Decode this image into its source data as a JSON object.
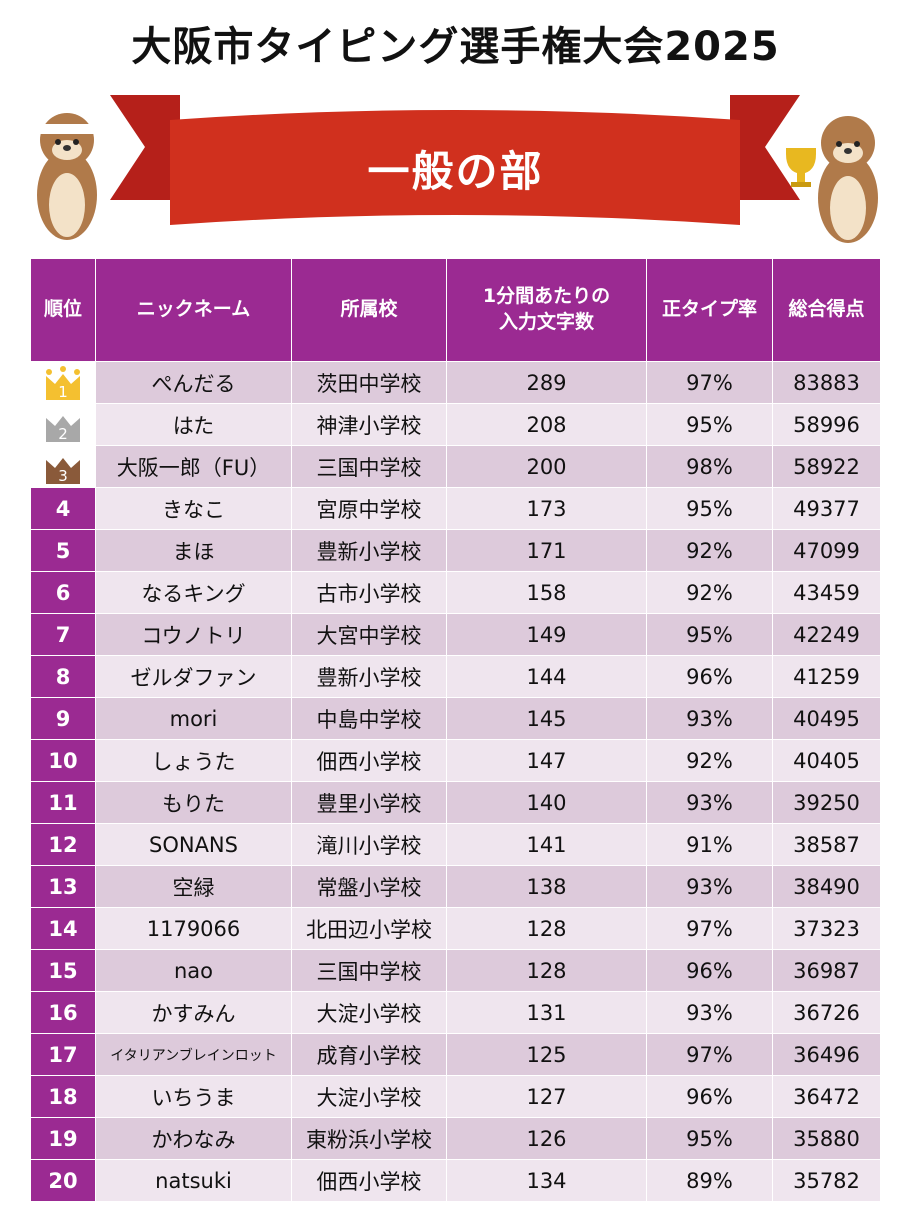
{
  "title": "大阪市タイピング選手権大会2025",
  "banner": "一般の部",
  "colors": {
    "header": "#9b2a92",
    "banner": "#d0301e",
    "gold": "#f4c030",
    "silver": "#a8a8a8",
    "bronze": "#8a5a3a"
  },
  "headers": [
    "順位",
    "ニックネーム",
    "所属校",
    "1分間あたりの\n入力文字数",
    "正タイプ率",
    "総合得点"
  ],
  "rows": [
    {
      "rank": "1",
      "nick": "ぺんだる",
      "school": "茨田中学校",
      "cpm": "289",
      "acc": "97%",
      "score": "83883",
      "medal": "gold"
    },
    {
      "rank": "2",
      "nick": "はた",
      "school": "神津小学校",
      "cpm": "208",
      "acc": "95%",
      "score": "58996",
      "medal": "silver"
    },
    {
      "rank": "3",
      "nick": "大阪一郎（FU）",
      "school": "三国中学校",
      "cpm": "200",
      "acc": "98%",
      "score": "58922",
      "medal": "bronze"
    },
    {
      "rank": "4",
      "nick": "きなこ",
      "school": "宮原中学校",
      "cpm": "173",
      "acc": "95%",
      "score": "49377"
    },
    {
      "rank": "5",
      "nick": "まほ",
      "school": "豊新小学校",
      "cpm": "171",
      "acc": "92%",
      "score": "47099"
    },
    {
      "rank": "6",
      "nick": "なるキング",
      "school": "古市小学校",
      "cpm": "158",
      "acc": "92%",
      "score": "43459"
    },
    {
      "rank": "7",
      "nick": "コウノトリ",
      "school": "大宮中学校",
      "cpm": "149",
      "acc": "95%",
      "score": "42249"
    },
    {
      "rank": "8",
      "nick": "ゼルダファン",
      "school": "豊新小学校",
      "cpm": "144",
      "acc": "96%",
      "score": "41259"
    },
    {
      "rank": "9",
      "nick": "mori",
      "school": "中島中学校",
      "cpm": "145",
      "acc": "93%",
      "score": "40495"
    },
    {
      "rank": "10",
      "nick": "しょうた",
      "school": "佃西小学校",
      "cpm": "147",
      "acc": "92%",
      "score": "40405"
    },
    {
      "rank": "11",
      "nick": "もりた",
      "school": "豊里小学校",
      "cpm": "140",
      "acc": "93%",
      "score": "39250"
    },
    {
      "rank": "12",
      "nick": "SONANS",
      "school": "滝川小学校",
      "cpm": "141",
      "acc": "91%",
      "score": "38587"
    },
    {
      "rank": "13",
      "nick": "空緑",
      "school": "常盤小学校",
      "cpm": "138",
      "acc": "93%",
      "score": "38490"
    },
    {
      "rank": "14",
      "nick": "1179066",
      "school": "北田辺小学校",
      "cpm": "128",
      "acc": "97%",
      "score": "37323"
    },
    {
      "rank": "15",
      "nick": "nao",
      "school": "三国中学校",
      "cpm": "128",
      "acc": "96%",
      "score": "36987"
    },
    {
      "rank": "16",
      "nick": "かすみん",
      "school": "大淀小学校",
      "cpm": "131",
      "acc": "93%",
      "score": "36726"
    },
    {
      "rank": "17",
      "nick": "イタリアンブレインロット",
      "school": "成育小学校",
      "cpm": "125",
      "acc": "97%",
      "score": "36496"
    },
    {
      "rank": "18",
      "nick": "いちうま",
      "school": "大淀小学校",
      "cpm": "127",
      "acc": "96%",
      "score": "36472"
    },
    {
      "rank": "19",
      "nick": "かわなみ",
      "school": "東粉浜小学校",
      "cpm": "126",
      "acc": "95%",
      "score": "35880"
    },
    {
      "rank": "20",
      "nick": "natsuki",
      "school": "佃西小学校",
      "cpm": "134",
      "acc": "89%",
      "score": "35782"
    }
  ]
}
